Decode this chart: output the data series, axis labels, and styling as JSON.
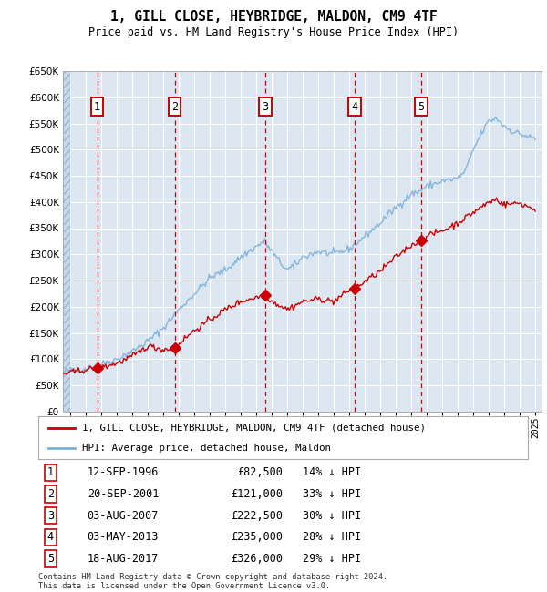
{
  "title": "1, GILL CLOSE, HEYBRIDGE, MALDON, CM9 4TF",
  "subtitle": "Price paid vs. HM Land Registry's House Price Index (HPI)",
  "ylim": [
    0,
    650000
  ],
  "yticks": [
    0,
    50000,
    100000,
    150000,
    200000,
    250000,
    300000,
    350000,
    400000,
    450000,
    500000,
    550000,
    600000,
    650000
  ],
  "xlim_start": 1994.5,
  "xlim_end": 2025.4,
  "chart_bg_color": "#dce6f1",
  "grid_color": "#ffffff",
  "sale_events": [
    {
      "num": 1,
      "date": "12-SEP-1996",
      "price": 82500,
      "pct": "14% ↓ HPI",
      "year": 1996.71
    },
    {
      "num": 2,
      "date": "20-SEP-2001",
      "price": 121000,
      "pct": "33% ↓ HPI",
      "year": 2001.71
    },
    {
      "num": 3,
      "date": "03-AUG-2007",
      "price": 222500,
      "pct": "30% ↓ HPI",
      "year": 2007.58
    },
    {
      "num": 4,
      "date": "03-MAY-2013",
      "price": 235000,
      "pct": "28% ↓ HPI",
      "year": 2013.33
    },
    {
      "num": 5,
      "date": "18-AUG-2017",
      "price": 326000,
      "pct": "29% ↓ HPI",
      "year": 2017.62
    }
  ],
  "hpi_color": "#7ab0d8",
  "price_color": "#cc0000",
  "footnote": "Contains HM Land Registry data © Crown copyright and database right 2024.\nThis data is licensed under the Open Government Licence v3.0.",
  "legend_label_price": "1, GILL CLOSE, HEYBRIDGE, MALDON, CM9 4TF (detached house)",
  "legend_label_hpi": "HPI: Average price, detached house, Maldon",
  "hpi_anchors_x": [
    1994.5,
    1995,
    1996,
    1997,
    1998,
    1999,
    2000,
    2001,
    2002,
    2003,
    2004,
    2005,
    2006,
    2007,
    2007.5,
    2008,
    2008.5,
    2009,
    2009.5,
    2010,
    2011,
    2012,
    2013,
    2014,
    2015,
    2016,
    2017,
    2017.5,
    2018,
    2019,
    2020,
    2020.5,
    2021,
    2021.5,
    2022,
    2022.5,
    2023,
    2023.5,
    2024,
    2024.5,
    2025
  ],
  "hpi_anchors_y": [
    75000,
    78000,
    82000,
    90000,
    100000,
    115000,
    135000,
    160000,
    195000,
    225000,
    255000,
    270000,
    295000,
    315000,
    325000,
    305000,
    285000,
    270000,
    280000,
    295000,
    305000,
    300000,
    310000,
    335000,
    360000,
    390000,
    415000,
    420000,
    430000,
    440000,
    445000,
    460000,
    500000,
    530000,
    555000,
    560000,
    545000,
    535000,
    530000,
    525000,
    520000
  ],
  "price_anchors_x": [
    1994.5,
    1995,
    1996,
    1996.71,
    1997,
    1998,
    1999,
    2000,
    2001,
    2001.71,
    2002,
    2003,
    2004,
    2005,
    2006,
    2007,
    2007.58,
    2008,
    2009,
    2010,
    2011,
    2012,
    2013,
    2013.33,
    2014,
    2015,
    2016,
    2017,
    2017.62,
    2018,
    2019,
    2020,
    2021,
    2022,
    2022.5,
    2023,
    2024,
    2025
  ],
  "price_anchors_y": [
    72000,
    74000,
    80000,
    82500,
    84000,
    92000,
    105000,
    125000,
    118000,
    121000,
    130000,
    155000,
    175000,
    195000,
    210000,
    218000,
    222500,
    210000,
    195000,
    210000,
    215000,
    210000,
    232000,
    235000,
    248000,
    268000,
    295000,
    318000,
    326000,
    335000,
    345000,
    360000,
    380000,
    400000,
    405000,
    395000,
    398000,
    385000
  ]
}
